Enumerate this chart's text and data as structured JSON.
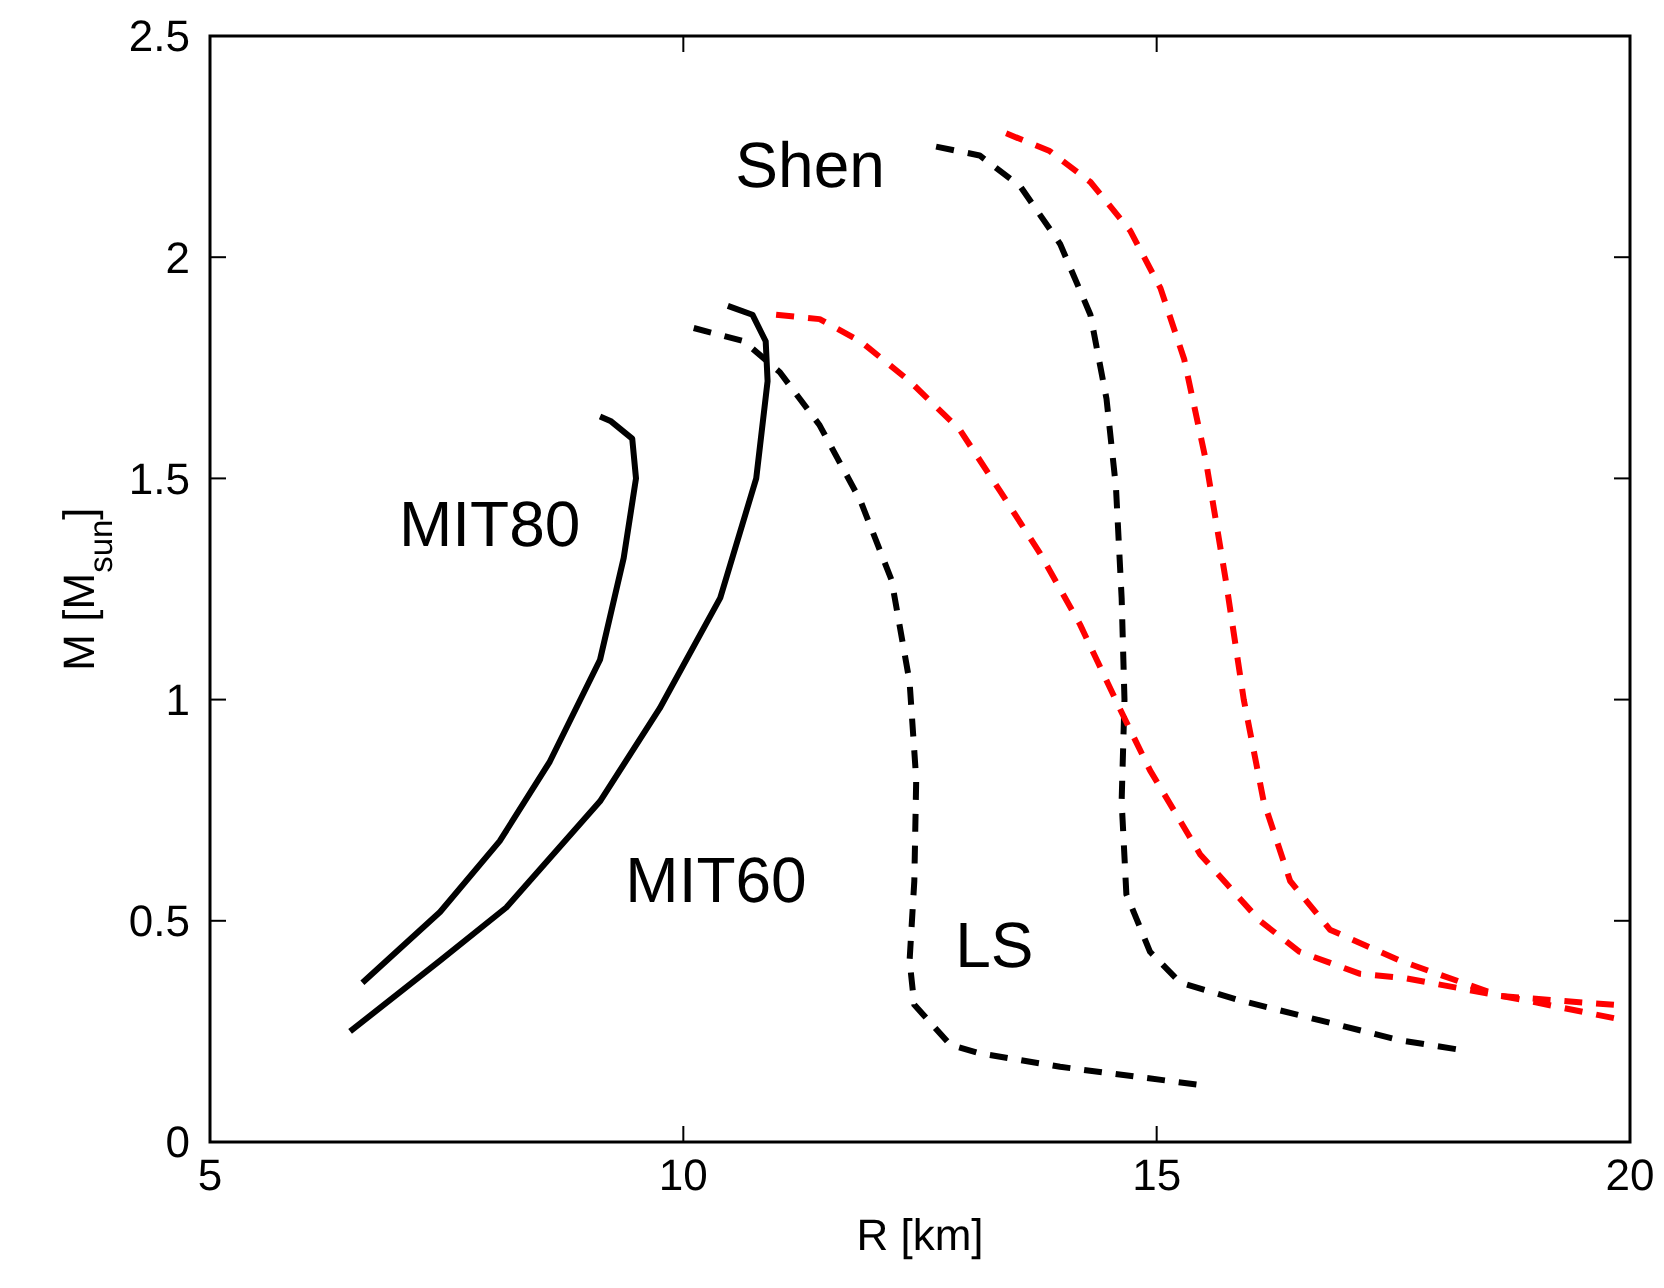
{
  "chart_data": {
    "type": "line",
    "xlabel": "R [km]",
    "ylabel": "M [M$_{sun}$]",
    "xlim": [
      5,
      20
    ],
    "ylim": [
      0,
      2.5
    ],
    "xticks": [
      5,
      10,
      15,
      20
    ],
    "yticks": [
      0,
      0.5,
      1,
      1.5,
      2,
      2.5
    ],
    "grid": false,
    "marker": "none",
    "series": [
      {
        "name": "MIT80",
        "color": "#000000",
        "line_style": "solid",
        "x": [
          6.61,
          7.43,
          8.06,
          8.59,
          9.12,
          9.37,
          9.5,
          9.46,
          9.23,
          9.12
        ],
        "values": [
          0.36,
          0.52,
          0.68,
          0.86,
          1.09,
          1.32,
          1.5,
          1.59,
          1.63,
          1.64
        ]
      },
      {
        "name": "MIT60",
        "color": "#000000",
        "line_style": "solid",
        "x": [
          6.48,
          7.43,
          8.13,
          9.12,
          9.75,
          10.39,
          10.77,
          10.89,
          10.87,
          10.73,
          10.47
        ],
        "values": [
          0.25,
          0.41,
          0.53,
          0.77,
          0.98,
          1.23,
          1.5,
          1.72,
          1.81,
          1.87,
          1.89
        ]
      },
      {
        "name": "LS",
        "color": "#000000",
        "line_style": "dashed",
        "x": [
          10.11,
          10.64,
          11.02,
          11.44,
          11.87,
          12.2,
          12.39,
          12.46,
          12.44,
          12.39,
          12.44,
          12.82,
          13.14,
          13.98,
          15.42
        ],
        "values": [
          1.84,
          1.81,
          1.74,
          1.62,
          1.45,
          1.27,
          1.04,
          0.82,
          0.59,
          0.41,
          0.31,
          0.22,
          0.2,
          0.17,
          0.13
        ]
      },
      {
        "name": "Shen",
        "color": "#000000",
        "line_style": "dashed",
        "x": [
          12.67,
          13.13,
          13.56,
          13.98,
          14.3,
          14.47,
          14.57,
          14.63,
          14.66,
          14.63,
          14.68,
          14.93,
          15.25,
          15.88,
          17.57,
          18.16
        ],
        "values": [
          2.25,
          2.23,
          2.16,
          2.03,
          1.87,
          1.68,
          1.48,
          1.23,
          1.0,
          0.77,
          0.56,
          0.43,
          0.36,
          0.32,
          0.23,
          0.21
        ]
      },
      {
        "color": "#ff0000",
        "line_style": "dashed",
        "x": [
          10.98,
          11.44,
          11.87,
          12.39,
          12.92,
          13.35,
          13.77,
          14.19,
          14.61,
          14.93,
          15.46,
          16.09,
          16.51,
          17.15,
          17.63,
          18.9,
          19.83
        ],
        "values": [
          1.87,
          1.86,
          1.81,
          1.72,
          1.61,
          1.47,
          1.33,
          1.17,
          0.98,
          0.84,
          0.65,
          0.5,
          0.43,
          0.38,
          0.37,
          0.32,
          0.28
        ]
      },
      {
        "color": "#ff0000",
        "line_style": "dashed",
        "x": [
          13.41,
          13.87,
          14.3,
          14.72,
          15.04,
          15.29,
          15.52,
          15.73,
          15.92,
          16.13,
          16.41,
          16.83,
          17.57,
          18.63,
          19.83
        ],
        "values": [
          2.28,
          2.24,
          2.17,
          2.06,
          1.93,
          1.77,
          1.54,
          1.27,
          1.0,
          0.77,
          0.59,
          0.48,
          0.41,
          0.33,
          0.31
        ]
      }
    ]
  }
}
